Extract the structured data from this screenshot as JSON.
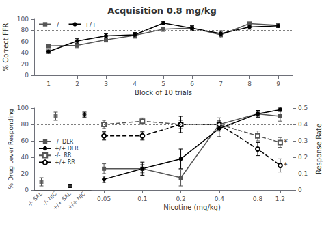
{
  "chart_data": [
    {
      "type": "line",
      "title": "Acquisition 0.8 mg/kg",
      "xlabel": "Block of 10 trials",
      "ylabel": "% Correct FFR",
      "x": [
        1,
        2,
        3,
        4,
        5,
        6,
        7,
        8,
        9
      ],
      "xlim": [
        0.5,
        9.5
      ],
      "xticks": [
        1,
        2,
        3,
        4,
        5,
        6,
        7,
        8,
        9
      ],
      "ylim": [
        0,
        100
      ],
      "yticks": [
        0,
        20,
        40,
        60,
        80,
        100
      ],
      "hline": 80,
      "grid": false,
      "legend": "upper left",
      "series": [
        {
          "name": "-/-",
          "color": "#555555",
          "marker": "square",
          "line_style": "solid",
          "values": [
            52,
            53,
            63,
            71,
            82,
            84,
            72,
            92,
            89
          ],
          "errors": [
            3,
            4,
            4,
            5,
            4,
            4,
            5,
            3,
            3
          ]
        },
        {
          "name": "+/+",
          "color": "#000000",
          "marker": "circle",
          "line_style": "solid",
          "values": [
            42,
            61,
            70,
            72,
            93,
            84,
            74,
            86,
            88
          ],
          "errors": [
            3,
            4,
            4,
            4,
            3,
            4,
            5,
            4,
            3
          ]
        }
      ]
    },
    {
      "type": "scatter",
      "ylabel": "% Drug Lever Responding",
      "categories": [
        "-/- SAL",
        "-/- NIC",
        "+/+ SAL",
        "+/+ NIC"
      ],
      "ylim": [
        0,
        100
      ],
      "yticks": [
        0,
        20,
        40,
        60,
        80,
        100
      ],
      "hline": 80,
      "grid": false,
      "series": [
        {
          "color": "#555555",
          "marker": "square",
          "values": [
            10,
            90,
            null,
            null
          ],
          "errors": [
            5,
            5,
            null,
            null
          ]
        },
        {
          "color": "#000000",
          "marker": "circle",
          "values": [
            null,
            null,
            5,
            92
          ],
          "errors": [
            null,
            null,
            2,
            3
          ]
        }
      ]
    },
    {
      "type": "line",
      "xlabel": "Nicotine (mg/kg)",
      "y2label": "Response Rate",
      "log": "x",
      "x": [
        0.05,
        0.1,
        0.2,
        0.4,
        0.8,
        1.2
      ],
      "xlim": [
        0.04,
        1.5
      ],
      "xticks": [
        0.05,
        0.1,
        0.2,
        0.4,
        0.8,
        1.2
      ],
      "ylim": [
        0,
        100
      ],
      "y2lim": [
        0,
        0.5
      ],
      "y2ticks": [
        0,
        0.1,
        0.2,
        0.3,
        0.4,
        0.5
      ],
      "hline": 80,
      "grid": false,
      "legend": "center left",
      "series": [
        {
          "name": "-/- DLR",
          "color": "#555555",
          "marker": "square",
          "line_style": "solid",
          "values": [
            26,
            26,
            15,
            80,
            93,
            90
          ],
          "errors": [
            6,
            5,
            10,
            8,
            4,
            6
          ]
        },
        {
          "name": "+/+ DLR",
          "color": "#000000",
          "marker": "circle",
          "line_style": "solid",
          "values": [
            13,
            26,
            38,
            75,
            93,
            98
          ],
          "errors": [
            4,
            8,
            12,
            10,
            4,
            2
          ]
        },
        {
          "name": "-/-  RR",
          "color": "#555555",
          "marker": "open-square",
          "line_style": "dashed",
          "axis": "y2",
          "values": [
            0.4,
            0.42,
            0.4,
            0.4,
            0.33,
            0.29
          ],
          "errors": [
            0.025,
            0.02,
            0.025,
            0.02,
            0.03,
            0.03
          ]
        },
        {
          "name": "+/+ RR",
          "color": "#000000",
          "marker": "open-circle",
          "line_style": "dashed",
          "axis": "y2",
          "values": [
            0.33,
            0.33,
            0.4,
            0.4,
            0.25,
            0.15
          ],
          "errors": [
            0.025,
            0.025,
            0.05,
            0.04,
            0.04,
            0.04
          ]
        }
      ],
      "annotations": [
        {
          "text": "*",
          "x": 1.2,
          "y": 0.29,
          "axis": "y2"
        },
        {
          "text": "*",
          "x": 1.2,
          "y": 0.15,
          "axis": "y2"
        }
      ]
    }
  ]
}
